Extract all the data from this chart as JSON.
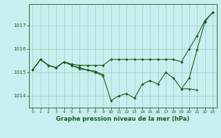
{
  "x": [
    0,
    1,
    2,
    3,
    4,
    5,
    6,
    7,
    8,
    9,
    10,
    11,
    12,
    13,
    14,
    15,
    16,
    17,
    18,
    19,
    20,
    21,
    22,
    23
  ],
  "line1": [
    1015.1,
    1015.55,
    1015.3,
    1015.2,
    1015.45,
    1015.35,
    1015.3,
    1015.3,
    1015.3,
    1015.3,
    1015.55,
    1015.55,
    1015.55,
    1015.55,
    1015.55,
    1015.55,
    1015.55,
    1015.55,
    1015.55,
    1015.45,
    1016.0,
    1016.55,
    1017.2,
    1017.55
  ],
  "line2": [
    1015.1,
    1015.55,
    1015.3,
    1015.2,
    1015.45,
    1015.3,
    1015.2,
    1015.1,
    1015.0,
    1014.85,
    1013.8,
    1014.0,
    1014.1,
    1013.9,
    1014.5,
    1014.65,
    1014.5,
    1015.0,
    1014.75,
    1014.3,
    1014.75,
    1015.95,
    1017.15,
    1017.55
  ],
  "line3": [
    1015.1,
    1015.55,
    1015.3,
    1015.2,
    1015.45,
    1015.3,
    1015.15,
    1015.1,
    1015.05,
    1014.9,
    null,
    null,
    null,
    null,
    null,
    null,
    null,
    null,
    null,
    1014.3,
    1014.3,
    1014.25,
    null,
    null
  ],
  "bg_color": "#c8eef0",
  "grid_color": "#99ccbb",
  "line_color": "#1a5c1a",
  "xlabel": "Graphe pression niveau de la mer (hPa)",
  "yticks": [
    1014,
    1015,
    1016,
    1017
  ],
  "xticks": [
    0,
    1,
    2,
    3,
    4,
    5,
    6,
    7,
    8,
    9,
    10,
    11,
    12,
    13,
    14,
    15,
    16,
    17,
    18,
    19,
    20,
    21,
    22,
    23
  ],
  "ylim": [
    1013.5,
    1017.9
  ],
  "xlim": [
    -0.5,
    23.5
  ]
}
